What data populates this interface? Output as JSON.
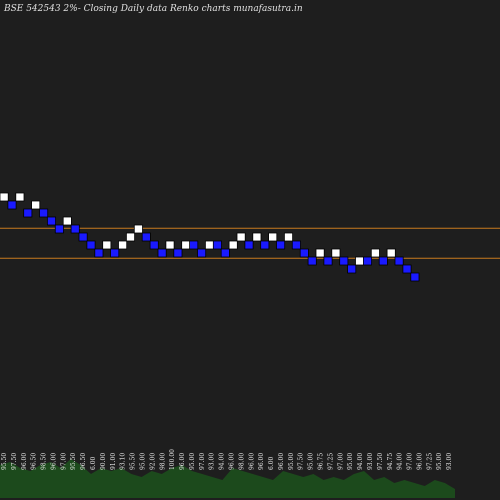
{
  "chart_data": {
    "type": "renko",
    "title": "BSE 542543 2%-  Closing Daily data  Renko  charts munafasutra.in",
    "colors": {
      "background": "#1e1e1e",
      "up_brick": "#ffffff",
      "down_brick": "#1a1aff",
      "reference_line": "#c87a1e",
      "volume": "#1c4a1c"
    },
    "bricks": [
      {
        "dir": "up",
        "level": 0
      },
      {
        "dir": "down",
        "level": 1
      },
      {
        "dir": "up",
        "level": 0
      },
      {
        "dir": "down",
        "level": 2
      },
      {
        "dir": "up",
        "level": 1
      },
      {
        "dir": "down",
        "level": 2
      },
      {
        "dir": "down",
        "level": 3
      },
      {
        "dir": "down",
        "level": 4
      },
      {
        "dir": "up",
        "level": 3
      },
      {
        "dir": "down",
        "level": 4
      },
      {
        "dir": "down",
        "level": 5
      },
      {
        "dir": "down",
        "level": 6
      },
      {
        "dir": "down",
        "level": 7
      },
      {
        "dir": "up",
        "level": 6
      },
      {
        "dir": "down",
        "level": 7
      },
      {
        "dir": "up",
        "level": 6
      },
      {
        "dir": "up",
        "level": 5
      },
      {
        "dir": "up",
        "level": 4
      },
      {
        "dir": "down",
        "level": 5
      },
      {
        "dir": "down",
        "level": 6
      },
      {
        "dir": "down",
        "level": 7
      },
      {
        "dir": "up",
        "level": 6
      },
      {
        "dir": "down",
        "level": 7
      },
      {
        "dir": "up",
        "level": 6
      },
      {
        "dir": "down",
        "level": 6
      },
      {
        "dir": "down",
        "level": 7
      },
      {
        "dir": "up",
        "level": 6
      },
      {
        "dir": "down",
        "level": 6
      },
      {
        "dir": "down",
        "level": 7
      },
      {
        "dir": "up",
        "level": 6
      },
      {
        "dir": "up",
        "level": 5
      },
      {
        "dir": "down",
        "level": 6
      },
      {
        "dir": "up",
        "level": 5
      },
      {
        "dir": "down",
        "level": 6
      },
      {
        "dir": "up",
        "level": 5
      },
      {
        "dir": "down",
        "level": 6
      },
      {
        "dir": "up",
        "level": 5
      },
      {
        "dir": "down",
        "level": 6
      },
      {
        "dir": "down",
        "level": 7
      },
      {
        "dir": "down",
        "level": 8
      },
      {
        "dir": "up",
        "level": 7
      },
      {
        "dir": "down",
        "level": 8
      },
      {
        "dir": "up",
        "level": 7
      },
      {
        "dir": "down",
        "level": 8
      },
      {
        "dir": "down",
        "level": 9
      },
      {
        "dir": "up",
        "level": 8
      },
      {
        "dir": "down",
        "level": 8
      },
      {
        "dir": "up",
        "level": 7
      },
      {
        "dir": "down",
        "level": 8
      },
      {
        "dir": "up",
        "level": 7
      },
      {
        "dir": "down",
        "level": 8
      },
      {
        "dir": "down",
        "level": 9
      },
      {
        "dir": "down",
        "level": 10
      }
    ],
    "reference_lines": [
      {
        "level": 4.4
      },
      {
        "level": 8.15
      }
    ],
    "volume_labels": [
      "95.50",
      "97.50",
      "96.00",
      "96.50",
      "98.50",
      "96.00",
      "97.00",
      "95.50",
      "96.50",
      "6.00",
      "90.00",
      "91.00",
      "93.10",
      "95.50",
      "95.00",
      "92.00",
      "98.00",
      "100.00",
      "96.00",
      "95.00",
      "97.00",
      "93.00",
      "94.00",
      "96.00",
      "98.00",
      "96.00",
      "96.00",
      "6.00",
      "96.00",
      "95.00",
      "97.50",
      "95.00",
      "96.75",
      "97.25",
      "97.00",
      "95.00",
      "94.00",
      "93.00",
      "97.50",
      "94.75",
      "94.00",
      "97.00",
      "96.00",
      "97.25",
      "95.00",
      "93.00"
    ],
    "volume_values": [
      0.55,
      0.6,
      0.5,
      0.45,
      0.55,
      0.6,
      0.5,
      0.65,
      0.55,
      0.4,
      0.5,
      0.45,
      0.5,
      0.4,
      0.35,
      0.45,
      0.4,
      0.5,
      0.55,
      0.45,
      0.4,
      0.35,
      0.3,
      0.5,
      0.45,
      0.4,
      0.35,
      0.3,
      0.45,
      0.4,
      0.35,
      0.4,
      0.3,
      0.35,
      0.3,
      0.4,
      0.45,
      0.3,
      0.35,
      0.25,
      0.3,
      0.25,
      0.2,
      0.3,
      0.25,
      0.15
    ]
  }
}
